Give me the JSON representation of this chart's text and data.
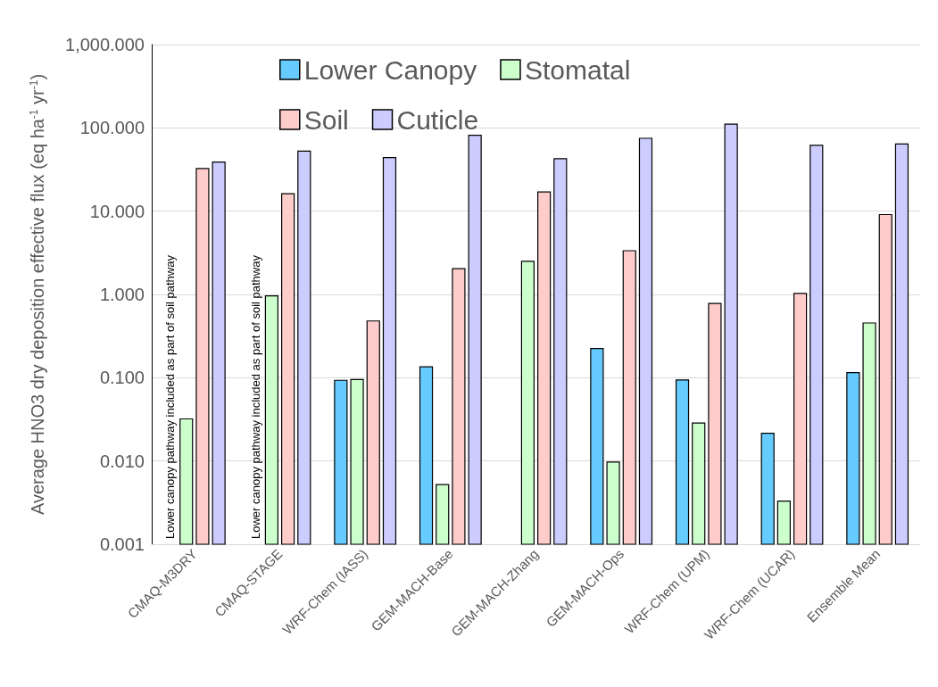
{
  "chart_data": {
    "type": "bar",
    "ylabel": "Average HNO3 dry deposition effective flux (eq ha$^{-1}$ yr$^{-1}$)",
    "categories": [
      "CMAQ-M3DRY",
      "CMAQ-STAGE",
      "WRF-Chem (IASS)",
      "GEM-MACH-Base",
      "GEM-MACH-Zhang",
      "GEM-MACH-Ops",
      "WRF-Chem (UPM)",
      "WRF-Chem (UCAR)",
      "Ensemble Mean"
    ],
    "series": [
      {
        "name": "Lower Canopy",
        "color": "#66ccff",
        "values": [
          null,
          null,
          0.093,
          0.135,
          null,
          0.224,
          0.094,
          0.0215,
          0.115
        ]
      },
      {
        "name": "Stomatal",
        "color": "#ccffcc",
        "values": [
          0.032,
          0.96,
          0.095,
          0.0052,
          2.5,
          0.0097,
          0.0286,
          0.0033,
          0.454
        ]
      },
      {
        "name": "Soil",
        "color": "#ffcccc",
        "values": [
          32.5,
          16.2,
          0.48,
          2.04,
          17,
          3.35,
          0.78,
          1.03,
          9.1
        ]
      },
      {
        "name": "Cuticle",
        "color": "#ccccff",
        "values": [
          38.8,
          52.6,
          44,
          81.5,
          42.6,
          75,
          111,
          61.8,
          64
        ]
      }
    ],
    "log": "y",
    "ylim": [
      0.001,
      1000
    ],
    "yticks": [
      {
        "value": 0.001,
        "label": "0.001"
      },
      {
        "value": 0.01,
        "label": "0.010"
      },
      {
        "value": 0.1,
        "label": "0.100"
      },
      {
        "value": 1,
        "label": "1.000"
      },
      {
        "value": 10,
        "label": "10.000"
      },
      {
        "value": 100,
        "label": "100.000"
      },
      {
        "value": 1000,
        "label": "1,000.000"
      }
    ],
    "grid": "y",
    "legend": "top",
    "annotations": [
      "Lower canopy pathway included as part of soil pathway",
      "Lower canopy pathway included as part of soil pathway"
    ]
  }
}
